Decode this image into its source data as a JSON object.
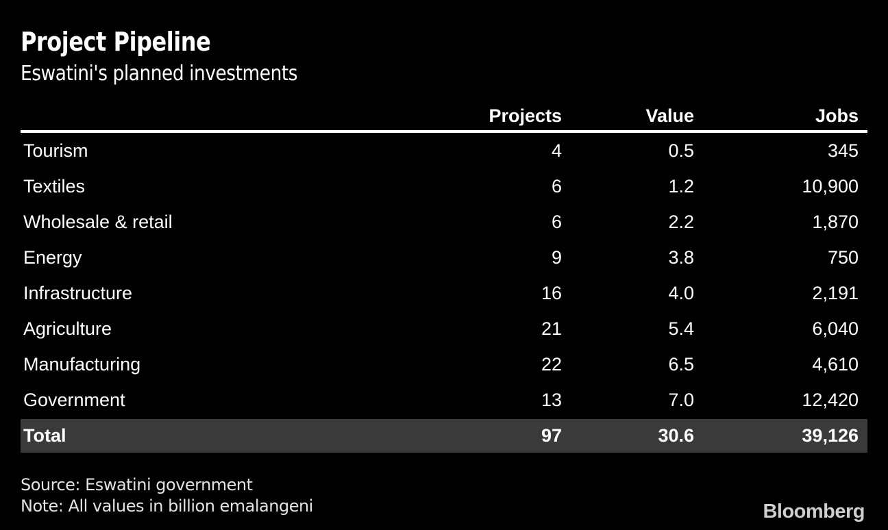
{
  "header": {
    "title": "Project Pipeline",
    "subtitle": "Eswatini's planned investments"
  },
  "chart_data": {
    "type": "table",
    "title": "Project Pipeline",
    "subtitle": "Eswatini's planned investments",
    "columns": [
      "Projects",
      "Value",
      "Jobs"
    ],
    "rows": [
      {
        "category": "Tourism",
        "projects": "4",
        "value": "0.5",
        "jobs": "345"
      },
      {
        "category": "Textiles",
        "projects": "6",
        "value": "1.2",
        "jobs": "10,900"
      },
      {
        "category": "Wholesale & retail",
        "projects": "6",
        "value": "2.2",
        "jobs": "1,870"
      },
      {
        "category": "Energy",
        "projects": "9",
        "value": "3.8",
        "jobs": "750"
      },
      {
        "category": "Infrastructure",
        "projects": "16",
        "value": "4.0",
        "jobs": "2,191"
      },
      {
        "category": "Agriculture",
        "projects": "21",
        "value": "5.4",
        "jobs": "6,040"
      },
      {
        "category": "Manufacturing",
        "projects": "22",
        "value": "6.5",
        "jobs": "4,610"
      },
      {
        "category": "Government",
        "projects": "13",
        "value": "7.0",
        "jobs": "12,420"
      }
    ],
    "total": {
      "label": "Total",
      "projects": "97",
      "value": "30.6",
      "jobs": "39,126"
    }
  },
  "footer": {
    "source": "Source: Eswatini government",
    "note": "Note: All values in billion emalangeni",
    "brand": "Bloomberg"
  },
  "colors": {
    "background": "#000000",
    "text": "#ffffff",
    "header_rule": "#ffffff",
    "total_row_bg": "#3a3a3a",
    "footer_text": "#e3e3e3",
    "brand_text": "#cfcfcf"
  }
}
